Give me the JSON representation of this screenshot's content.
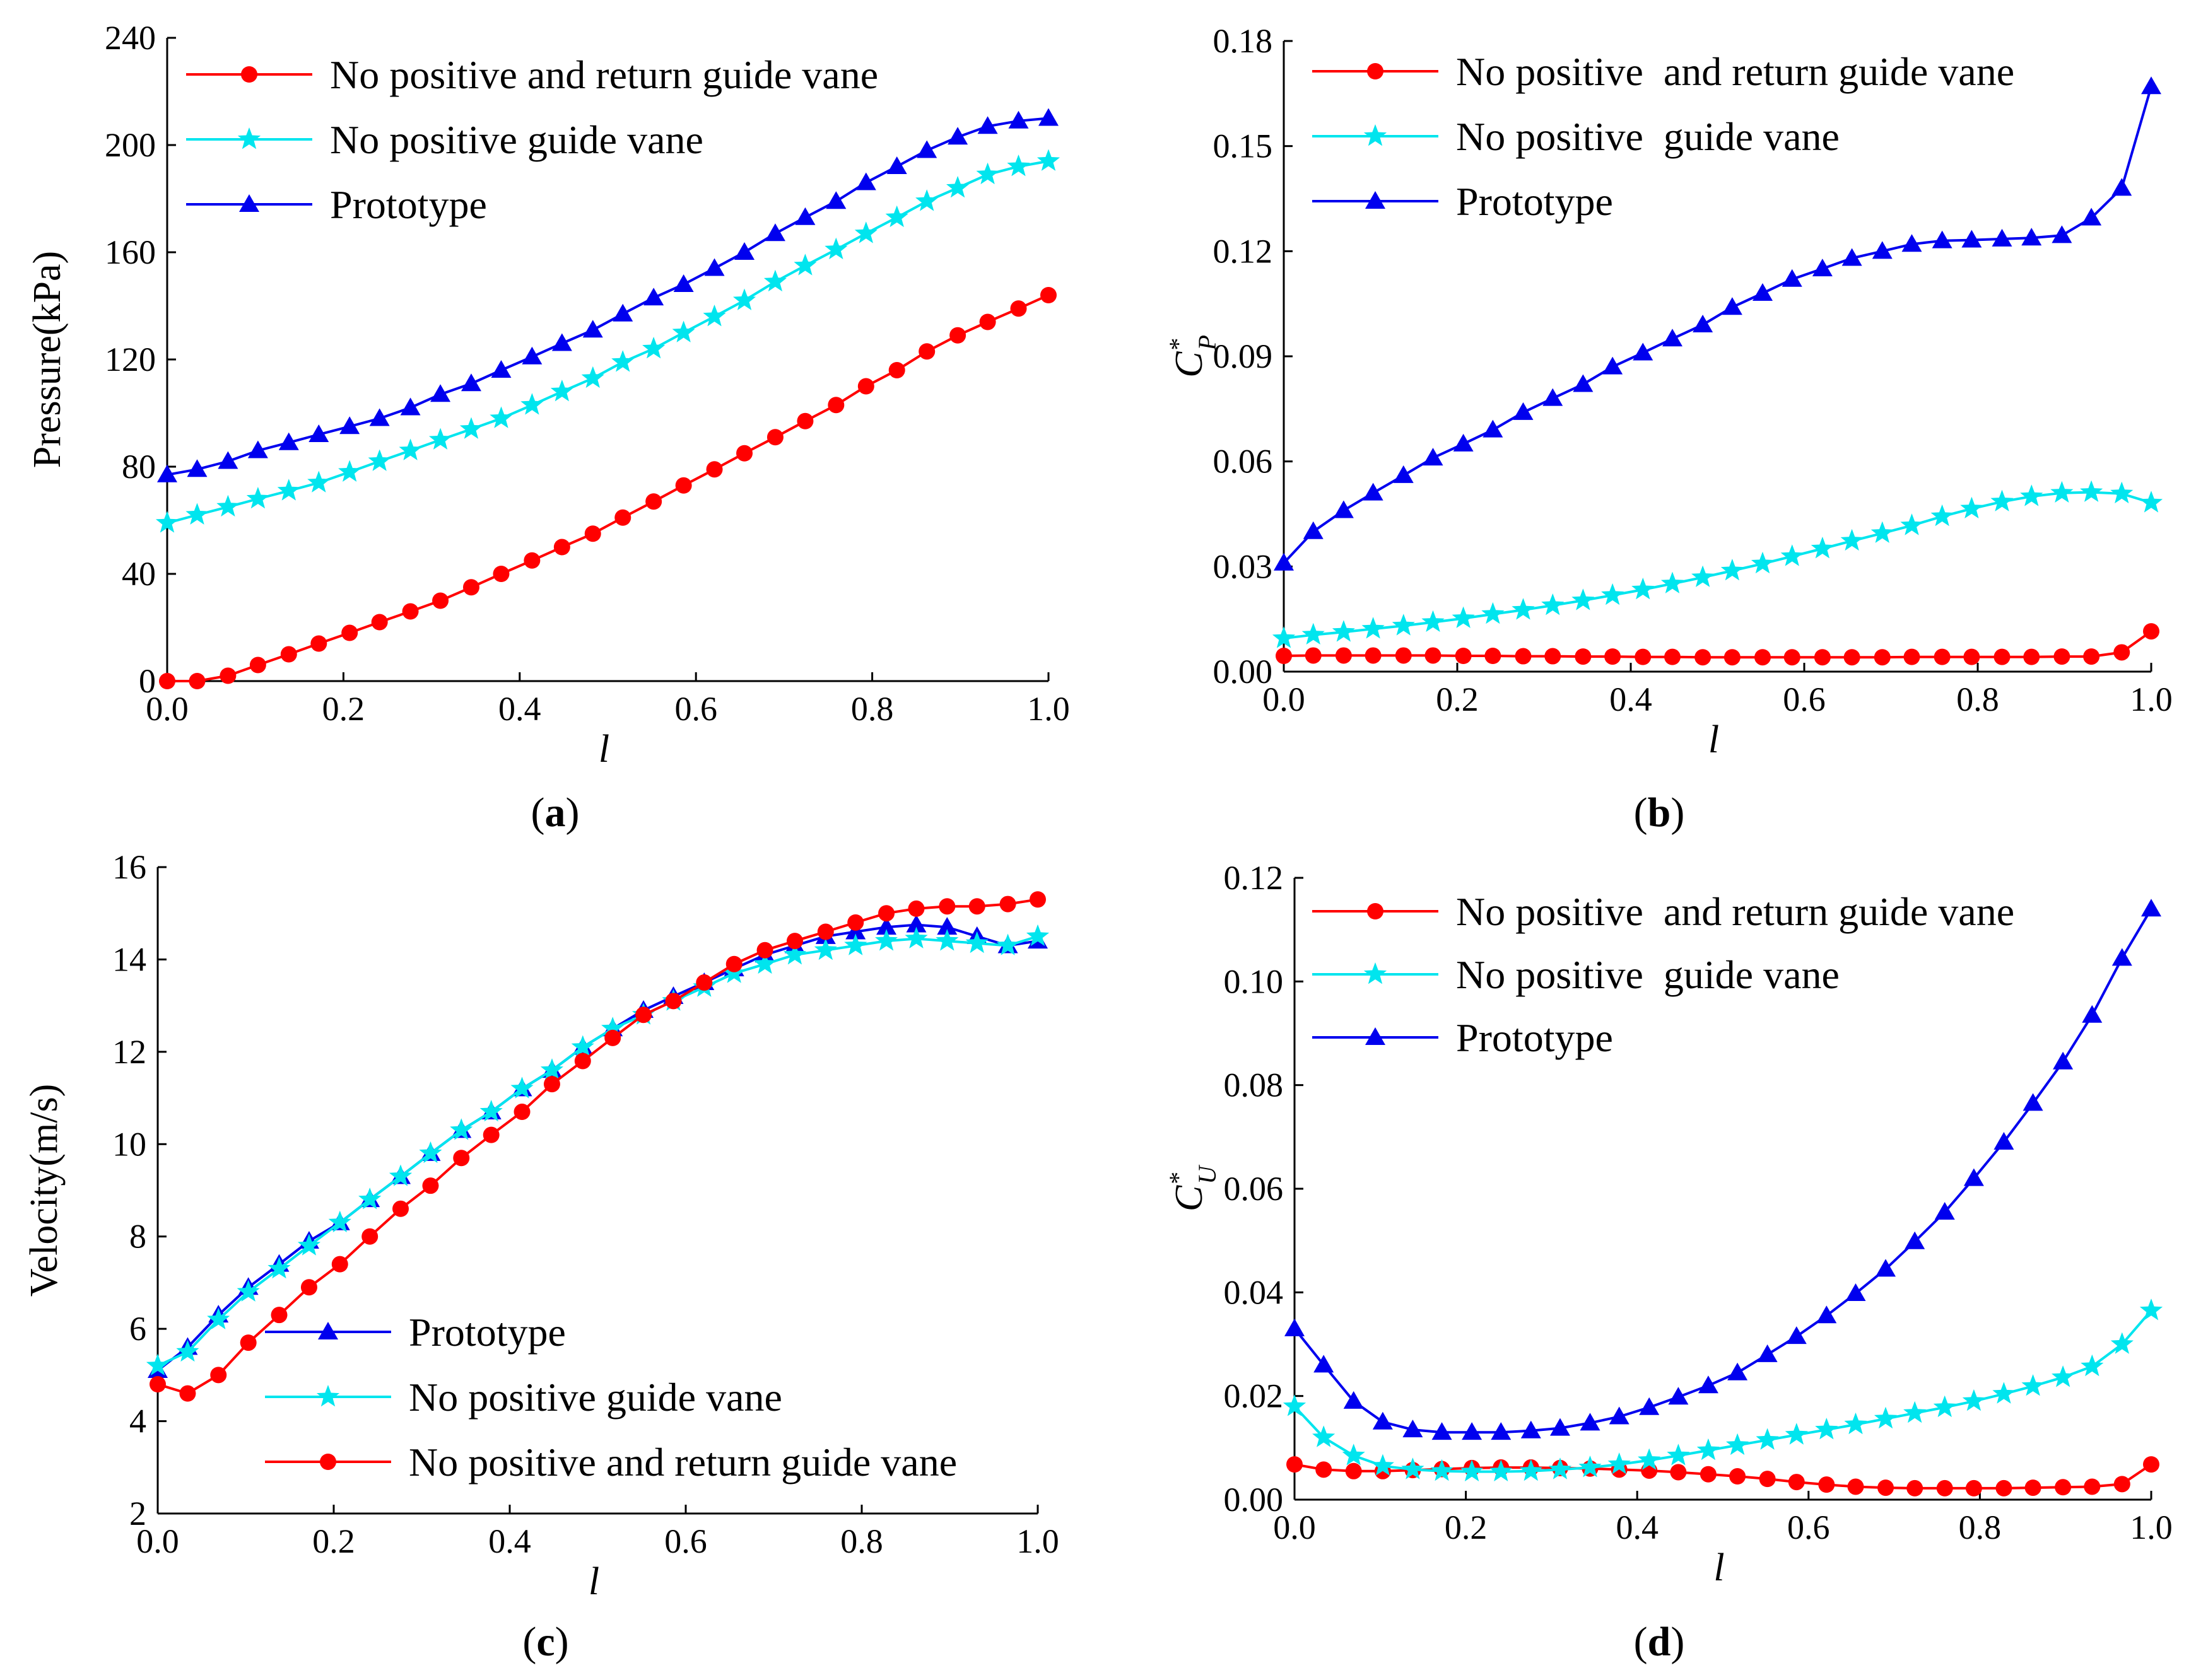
{
  "chart_data": [
    {
      "id": "a",
      "type": "line",
      "caption_letter": "a",
      "xlabel": "l",
      "ylabel": "Pressure(kPa)",
      "xlim": [
        0,
        1.0
      ],
      "ylim": [
        0,
        240
      ],
      "xticks": [
        0.0,
        0.2,
        0.4,
        0.6,
        0.8,
        1.0
      ],
      "xtick_labels": [
        "0.0",
        "0.2",
        "0.4",
        "0.6",
        "0.8",
        "1.0"
      ],
      "yticks": [
        0,
        40,
        80,
        120,
        160,
        200,
        240
      ],
      "ytick_labels": [
        "0",
        "40",
        "80",
        "120",
        "160",
        "200",
        "240"
      ],
      "legend": [
        "No positive and return guide vane",
        "No positive guide vane",
        "Prototype"
      ],
      "series": [
        {
          "name": "No positive and return guide vane",
          "color": "#ff0000",
          "marker": "circle",
          "x": [
            0,
            0.034,
            0.069,
            0.103,
            0.138,
            0.172,
            0.207,
            0.241,
            0.276,
            0.31,
            0.345,
            0.379,
            0.414,
            0.448,
            0.483,
            0.517,
            0.552,
            0.586,
            0.621,
            0.655,
            0.69,
            0.724,
            0.759,
            0.793,
            0.828,
            0.862,
            0.897,
            0.931,
            0.966,
            1.0
          ],
          "y": [
            0,
            0,
            2,
            6,
            10,
            14,
            18,
            22,
            26,
            30,
            35,
            40,
            45,
            50,
            55,
            61,
            67,
            73,
            79,
            85,
            91,
            97,
            103,
            110,
            116,
            123,
            129,
            134,
            139,
            144
          ]
        },
        {
          "name": "No positive guide vane",
          "color": "#00e5ee",
          "marker": "star",
          "x": [
            0,
            0.034,
            0.069,
            0.103,
            0.138,
            0.172,
            0.207,
            0.241,
            0.276,
            0.31,
            0.345,
            0.379,
            0.414,
            0.448,
            0.483,
            0.517,
            0.552,
            0.586,
            0.621,
            0.655,
            0.69,
            0.724,
            0.759,
            0.793,
            0.828,
            0.862,
            0.897,
            0.931,
            0.966,
            1.0
          ],
          "y": [
            59,
            62,
            65,
            68,
            71,
            74,
            78,
            82,
            86,
            90,
            94,
            98,
            103,
            108,
            113,
            119,
            124,
            130,
            136,
            142,
            149,
            155,
            161,
            167,
            173,
            179,
            184,
            189,
            192,
            194
          ]
        },
        {
          "name": "Prototype",
          "color": "#0000ee",
          "marker": "triangle",
          "x": [
            0,
            0.034,
            0.069,
            0.103,
            0.138,
            0.172,
            0.207,
            0.241,
            0.276,
            0.31,
            0.345,
            0.379,
            0.414,
            0.448,
            0.483,
            0.517,
            0.552,
            0.586,
            0.621,
            0.655,
            0.69,
            0.724,
            0.759,
            0.793,
            0.828,
            0.862,
            0.897,
            0.931,
            0.966,
            1.0
          ],
          "y": [
            77,
            79,
            82,
            86,
            89,
            92,
            95,
            98,
            102,
            107,
            111,
            116,
            121,
            126,
            131,
            137,
            143,
            148,
            154,
            160,
            167,
            173,
            179,
            186,
            192,
            198,
            203,
            207,
            209,
            210
          ]
        }
      ]
    },
    {
      "id": "b",
      "type": "line",
      "caption_letter": "b",
      "xlabel": "l",
      "ylabel_main": "C",
      "ylabel_sup": "*",
      "ylabel_sub": "P",
      "xlim": [
        0,
        1.0
      ],
      "ylim": [
        0,
        0.18
      ],
      "xticks": [
        0.0,
        0.2,
        0.4,
        0.6,
        0.8,
        1.0
      ],
      "xtick_labels": [
        "0.0",
        "0.2",
        "0.4",
        "0.6",
        "0.8",
        "1.0"
      ],
      "yticks": [
        0,
        0.03,
        0.06,
        0.09,
        0.12,
        0.15,
        0.18
      ],
      "ytick_labels": [
        "0.00",
        "0.03",
        "0.06",
        "0.09",
        "0.12",
        "0.15",
        "0.18"
      ],
      "legend": [
        "No positive  and return guide vane",
        "No positive  guide vane",
        "Prototype"
      ],
      "series": [
        {
          "name": "No positive  and return guide vane",
          "color": "#ff0000",
          "marker": "circle",
          "x": [
            0,
            0.034,
            0.069,
            0.103,
            0.138,
            0.172,
            0.207,
            0.241,
            0.276,
            0.31,
            0.345,
            0.379,
            0.414,
            0.448,
            0.483,
            0.517,
            0.552,
            0.586,
            0.621,
            0.655,
            0.69,
            0.724,
            0.759,
            0.793,
            0.828,
            0.862,
            0.897,
            0.931,
            0.966,
            1.0
          ],
          "y": [
            0.0045,
            0.0046,
            0.0046,
            0.0046,
            0.0046,
            0.0046,
            0.0045,
            0.0045,
            0.0044,
            0.0044,
            0.0043,
            0.0043,
            0.0042,
            0.0042,
            0.0041,
            0.0041,
            0.0041,
            0.0041,
            0.0041,
            0.0041,
            0.0041,
            0.0042,
            0.0042,
            0.0042,
            0.0042,
            0.0042,
            0.0043,
            0.0043,
            0.0055,
            0.0115
          ]
        },
        {
          "name": "No positive  guide vane",
          "color": "#00e5ee",
          "marker": "star",
          "x": [
            0,
            0.034,
            0.069,
            0.103,
            0.138,
            0.172,
            0.207,
            0.241,
            0.276,
            0.31,
            0.345,
            0.379,
            0.414,
            0.448,
            0.483,
            0.517,
            0.552,
            0.586,
            0.621,
            0.655,
            0.69,
            0.724,
            0.759,
            0.793,
            0.828,
            0.862,
            0.897,
            0.931,
            0.966,
            1.0
          ],
          "y": [
            0.0095,
            0.0105,
            0.0113,
            0.0122,
            0.0131,
            0.0141,
            0.0152,
            0.0164,
            0.0176,
            0.0189,
            0.0203,
            0.0218,
            0.0234,
            0.0251,
            0.0269,
            0.0288,
            0.0308,
            0.0329,
            0.0351,
            0.0373,
            0.0395,
            0.0417,
            0.0443,
            0.0465,
            0.0485,
            0.05,
            0.051,
            0.0512,
            0.0508,
            0.0482
          ]
        },
        {
          "name": "Prototype",
          "color": "#0000ee",
          "marker": "triangle",
          "x": [
            0,
            0.034,
            0.069,
            0.103,
            0.138,
            0.172,
            0.207,
            0.241,
            0.276,
            0.31,
            0.345,
            0.379,
            0.414,
            0.448,
            0.483,
            0.517,
            0.552,
            0.586,
            0.621,
            0.655,
            0.69,
            0.724,
            0.759,
            0.793,
            0.828,
            0.862,
            0.897,
            0.931,
            0.966,
            1.0
          ],
          "y": [
            0.031,
            0.04,
            0.046,
            0.051,
            0.056,
            0.061,
            0.065,
            0.069,
            0.074,
            0.078,
            0.082,
            0.087,
            0.091,
            0.095,
            0.099,
            0.104,
            0.108,
            0.112,
            0.115,
            0.118,
            0.12,
            0.122,
            0.123,
            0.1232,
            0.1235,
            0.1238,
            0.1245,
            0.1295,
            0.138,
            0.167
          ]
        }
      ]
    },
    {
      "id": "c",
      "type": "line",
      "caption_letter": "c",
      "xlabel": "l",
      "ylabel": "Velocity(m/s)",
      "xlim": [
        0,
        1.0
      ],
      "ylim": [
        2,
        16
      ],
      "xticks": [
        0.0,
        0.2,
        0.4,
        0.6,
        0.8,
        1.0
      ],
      "xtick_labels": [
        "0.0",
        "0.2",
        "0.4",
        "0.6",
        "0.8",
        "1.0"
      ],
      "yticks": [
        2,
        4,
        6,
        8,
        10,
        12,
        14,
        16
      ],
      "ytick_labels": [
        "2",
        "4",
        "6",
        "8",
        "10",
        "12",
        "14",
        "16"
      ],
      "legend": [
        "Prototype",
        "No positive guide vane",
        "No positive and return guide vane"
      ],
      "series": [
        {
          "name": "Prototype",
          "color": "#0000ee",
          "marker": "triangle",
          "x": [
            0,
            0.034,
            0.069,
            0.103,
            0.138,
            0.172,
            0.207,
            0.241,
            0.276,
            0.31,
            0.345,
            0.379,
            0.414,
            0.448,
            0.483,
            0.517,
            0.552,
            0.586,
            0.621,
            0.655,
            0.69,
            0.724,
            0.759,
            0.793,
            0.828,
            0.862,
            0.897,
            0.931,
            0.966,
            1.0
          ],
          "y": [
            5.1,
            5.6,
            6.3,
            6.9,
            7.4,
            7.9,
            8.3,
            8.8,
            9.3,
            9.8,
            10.3,
            10.7,
            11.2,
            11.6,
            12.1,
            12.5,
            12.9,
            13.2,
            13.5,
            13.8,
            14.1,
            14.3,
            14.5,
            14.6,
            14.7,
            14.75,
            14.7,
            14.5,
            14.3,
            14.4
          ]
        },
        {
          "name": "No positive guide vane",
          "color": "#00e5ee",
          "marker": "star",
          "x": [
            0,
            0.034,
            0.069,
            0.103,
            0.138,
            0.172,
            0.207,
            0.241,
            0.276,
            0.31,
            0.345,
            0.379,
            0.414,
            0.448,
            0.483,
            0.517,
            0.552,
            0.586,
            0.621,
            0.655,
            0.69,
            0.724,
            0.759,
            0.793,
            0.828,
            0.862,
            0.897,
            0.931,
            0.966,
            1.0
          ],
          "y": [
            5.2,
            5.5,
            6.2,
            6.8,
            7.3,
            7.8,
            8.3,
            8.8,
            9.3,
            9.8,
            10.3,
            10.7,
            11.2,
            11.6,
            12.1,
            12.5,
            12.8,
            13.1,
            13.4,
            13.7,
            13.9,
            14.1,
            14.2,
            14.3,
            14.4,
            14.45,
            14.4,
            14.35,
            14.3,
            14.5
          ]
        },
        {
          "name": "No positive and return guide vane",
          "color": "#ff0000",
          "marker": "circle",
          "x": [
            0,
            0.034,
            0.069,
            0.103,
            0.138,
            0.172,
            0.207,
            0.241,
            0.276,
            0.31,
            0.345,
            0.379,
            0.414,
            0.448,
            0.483,
            0.517,
            0.552,
            0.586,
            0.621,
            0.655,
            0.69,
            0.724,
            0.759,
            0.793,
            0.828,
            0.862,
            0.897,
            0.931,
            0.966,
            1.0
          ],
          "y": [
            4.8,
            4.6,
            5.0,
            5.7,
            6.3,
            6.9,
            7.4,
            8.0,
            8.6,
            9.1,
            9.7,
            10.2,
            10.7,
            11.3,
            11.8,
            12.3,
            12.8,
            13.1,
            13.5,
            13.9,
            14.2,
            14.4,
            14.6,
            14.8,
            15.0,
            15.1,
            15.15,
            15.15,
            15.2,
            15.3
          ]
        }
      ]
    },
    {
      "id": "d",
      "type": "line",
      "caption_letter": "d",
      "xlabel": "l",
      "ylabel_main": "C",
      "ylabel_sup": "*",
      "ylabel_sub": "U",
      "xlim": [
        0,
        1.0
      ],
      "ylim": [
        0,
        0.12
      ],
      "xticks": [
        0.0,
        0.2,
        0.4,
        0.6,
        0.8,
        1.0
      ],
      "xtick_labels": [
        "0.0",
        "0.2",
        "0.4",
        "0.6",
        "0.8",
        "1.0"
      ],
      "yticks": [
        0,
        0.02,
        0.04,
        0.06,
        0.08,
        0.1,
        0.12
      ],
      "ytick_labels": [
        "0.00",
        "0.02",
        "0.04",
        "0.06",
        "0.08",
        "0.10",
        "0.12"
      ],
      "legend": [
        "No positive  and return guide vane",
        "No positive  guide vane",
        "Prototype"
      ],
      "series": [
        {
          "name": "No positive  and return guide vane",
          "color": "#ff0000",
          "marker": "circle",
          "x": [
            0,
            0.034,
            0.069,
            0.103,
            0.138,
            0.172,
            0.207,
            0.241,
            0.276,
            0.31,
            0.345,
            0.379,
            0.414,
            0.448,
            0.483,
            0.517,
            0.552,
            0.586,
            0.621,
            0.655,
            0.69,
            0.724,
            0.759,
            0.793,
            0.828,
            0.862,
            0.897,
            0.931,
            0.966,
            1.0
          ],
          "y": [
            0.0068,
            0.0058,
            0.0055,
            0.0055,
            0.0057,
            0.0059,
            0.0061,
            0.0062,
            0.0062,
            0.0061,
            0.006,
            0.0058,
            0.0056,
            0.0053,
            0.0049,
            0.0045,
            0.004,
            0.0034,
            0.0029,
            0.0025,
            0.0023,
            0.0022,
            0.0022,
            0.0022,
            0.0022,
            0.0023,
            0.0024,
            0.0025,
            0.003,
            0.0068
          ]
        },
        {
          "name": "No positive  guide vane",
          "color": "#00e5ee",
          "marker": "star",
          "x": [
            0,
            0.034,
            0.069,
            0.103,
            0.138,
            0.172,
            0.207,
            0.241,
            0.276,
            0.31,
            0.345,
            0.379,
            0.414,
            0.448,
            0.483,
            0.517,
            0.552,
            0.586,
            0.621,
            0.655,
            0.69,
            0.724,
            0.759,
            0.793,
            0.828,
            0.862,
            0.897,
            0.931,
            0.966,
            1.0
          ],
          "y": [
            0.018,
            0.012,
            0.0085,
            0.0065,
            0.0058,
            0.0055,
            0.0054,
            0.0054,
            0.0055,
            0.0058,
            0.0062,
            0.0068,
            0.0076,
            0.0085,
            0.0095,
            0.0105,
            0.0115,
            0.0125,
            0.0135,
            0.0145,
            0.0156,
            0.0167,
            0.0178,
            0.019,
            0.0204,
            0.0219,
            0.0236,
            0.0257,
            0.03,
            0.0365
          ]
        },
        {
          "name": "Prototype",
          "color": "#0000ee",
          "marker": "triangle",
          "x": [
            0,
            0.034,
            0.069,
            0.103,
            0.138,
            0.172,
            0.207,
            0.241,
            0.276,
            0.31,
            0.345,
            0.379,
            0.414,
            0.448,
            0.483,
            0.517,
            0.552,
            0.586,
            0.621,
            0.655,
            0.69,
            0.724,
            0.759,
            0.793,
            0.828,
            0.862,
            0.897,
            0.931,
            0.966,
            1.0
          ],
          "y": [
            0.033,
            0.026,
            0.019,
            0.015,
            0.0135,
            0.013,
            0.013,
            0.013,
            0.0133,
            0.0138,
            0.0148,
            0.016,
            0.0178,
            0.0198,
            0.022,
            0.0245,
            0.028,
            0.0315,
            0.0355,
            0.0398,
            0.0445,
            0.0498,
            0.0555,
            0.062,
            0.069,
            0.0765,
            0.0845,
            0.0935,
            0.1045,
            0.114
          ]
        }
      ]
    }
  ]
}
